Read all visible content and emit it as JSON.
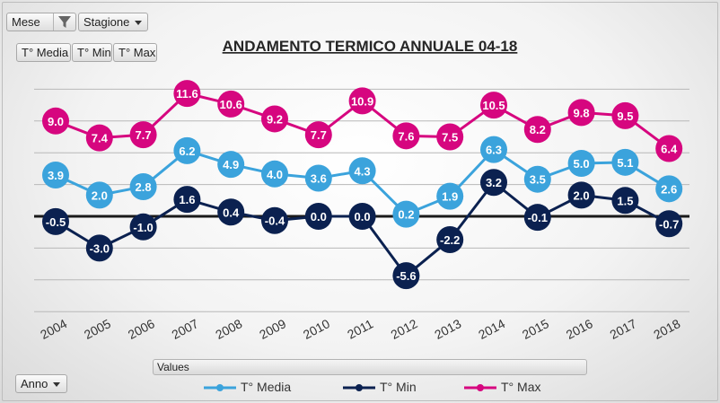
{
  "pivot": {
    "filters": [
      {
        "label": "Mese",
        "icon": "filter-icon"
      },
      {
        "label": "Stagione",
        "icon": "chevron-down-icon"
      }
    ],
    "measures": [
      "T° Media",
      "T° Min",
      "T° Max"
    ],
    "axis_field": "Anno",
    "values_label": "Values"
  },
  "chart_data": {
    "type": "line",
    "title": "ANDAMENTO TERMICO ANNUALE 04-18",
    "xlabel": "",
    "ylabel": "",
    "categories": [
      "2004",
      "2005",
      "2006",
      "2007",
      "2008",
      "2009",
      "2010",
      "2011",
      "2012",
      "2013",
      "2014",
      "2015",
      "2016",
      "2017",
      "2018"
    ],
    "series": [
      {
        "name": "T° Max",
        "color": "#d6067f",
        "values": [
          9.0,
          7.4,
          7.7,
          11.6,
          10.6,
          9.2,
          7.7,
          10.9,
          7.6,
          7.5,
          10.5,
          8.2,
          9.8,
          9.5,
          6.4
        ]
      },
      {
        "name": "T° Media",
        "color": "#3ba3dc",
        "values": [
          3.9,
          2.0,
          2.8,
          6.2,
          4.9,
          4.0,
          3.6,
          4.3,
          0.2,
          1.9,
          6.3,
          3.5,
          5.0,
          5.1,
          2.6
        ]
      },
      {
        "name": "T° Min",
        "color": "#0b2150",
        "values": [
          -0.5,
          -3.0,
          -1.0,
          1.6,
          0.4,
          -0.4,
          0.0,
          0.0,
          -5.6,
          -2.2,
          3.2,
          -0.1,
          2.0,
          1.5,
          -0.7
        ]
      }
    ],
    "legend_order": [
      "T° Media",
      "T° Min",
      "T° Max"
    ],
    "ylim": [
      -9,
      14
    ],
    "grid": true,
    "legend_position": "bottom"
  }
}
